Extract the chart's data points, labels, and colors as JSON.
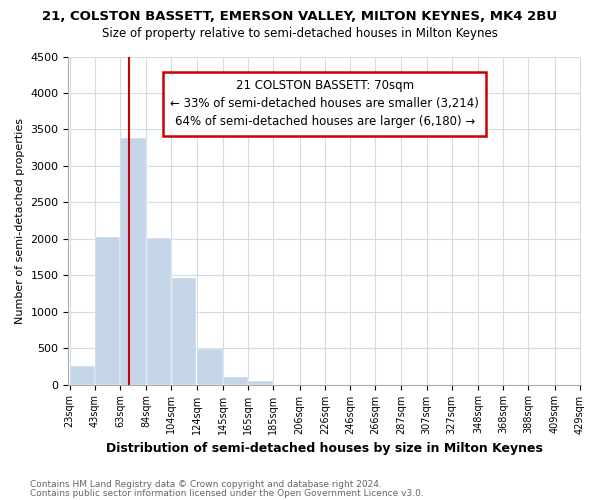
{
  "title": "21, COLSTON BASSETT, EMERSON VALLEY, MILTON KEYNES, MK4 2BU",
  "subtitle": "Size of property relative to semi-detached houses in Milton Keynes",
  "xlabel": "Distribution of semi-detached houses by size in Milton Keynes",
  "ylabel": "Number of semi-detached properties",
  "footnote1": "Contains HM Land Registry data © Crown copyright and database right 2024.",
  "footnote2": "Contains public sector information licensed under the Open Government Licence v3.0.",
  "annotation_title": "21 COLSTON BASSETT: 70sqm",
  "annotation_line1": "← 33% of semi-detached houses are smaller (3,214)",
  "annotation_line2": "64% of semi-detached houses are larger (6,180) →",
  "property_size": 70,
  "bar_edges": [
    23,
    43,
    63,
    84,
    104,
    124,
    145,
    165,
    185,
    206,
    226,
    246,
    266,
    287,
    307,
    327,
    348,
    368,
    388,
    409,
    429
  ],
  "bar_heights": [
    250,
    2030,
    3380,
    2010,
    1460,
    490,
    100,
    50,
    0,
    0,
    0,
    0,
    0,
    0,
    0,
    0,
    0,
    0,
    0,
    0
  ],
  "bar_color": "#c5d5e8",
  "property_line_color": "#cc0000",
  "annotation_box_color": "#cc0000",
  "ylim": [
    0,
    4500
  ],
  "yticks": [
    0,
    500,
    1000,
    1500,
    2000,
    2500,
    3000,
    3500,
    4000,
    4500
  ],
  "bg_color": "#ffffff",
  "grid_color": "#d0dce8"
}
